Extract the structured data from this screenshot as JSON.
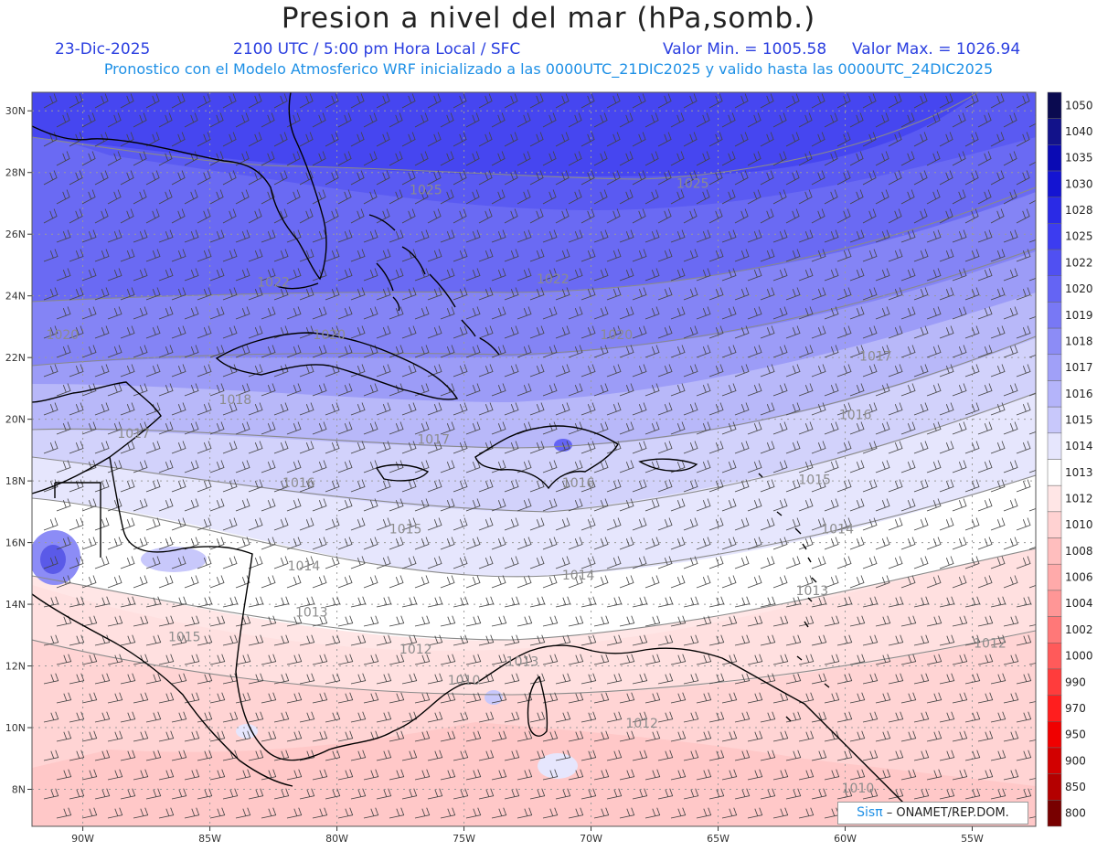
{
  "header": {
    "title": "Presion a nivel del mar (hPa,somb.)",
    "date": "23-Dic-2025",
    "time": "2100 UTC / 5:00 pm Hora Local / SFC",
    "min_label": "Valor Min. = 1005.58",
    "max_label": "Valor Max. = 1026.94",
    "subtitle": "Pronostico con el Modelo Atmosferico WRF inicializado a las 0000UTC_21DIC2025 y valido hasta las  0000UTC_24DIC2025"
  },
  "map": {
    "lat_labels": [
      "30N",
      "28N",
      "26N",
      "24N",
      "22N",
      "20N",
      "18N",
      "16N",
      "14N",
      "12N",
      "10N",
      "8N"
    ],
    "lon_labels": [
      "90W",
      "85W",
      "80W",
      "75W",
      "70W",
      "65W",
      "60W",
      "55W"
    ],
    "isobar_labels": [
      {
        "text": "1025",
        "lon": -76.5,
        "lat": 27.3
      },
      {
        "text": "1025",
        "lon": -66.0,
        "lat": 27.5
      },
      {
        "text": "1022",
        "lon": -82.5,
        "lat": 24.3
      },
      {
        "text": "1022",
        "lon": -71.5,
        "lat": 24.4
      },
      {
        "text": "1020",
        "lon": -90.8,
        "lat": 22.6
      },
      {
        "text": "1020",
        "lon": -80.3,
        "lat": 22.6
      },
      {
        "text": "1020",
        "lon": -69.0,
        "lat": 22.6
      },
      {
        "text": "1017",
        "lon": -58.8,
        "lat": 21.9
      },
      {
        "text": "1018",
        "lon": -84.0,
        "lat": 20.5
      },
      {
        "text": "1016",
        "lon": -59.6,
        "lat": 20.0
      },
      {
        "text": "1017",
        "lon": -88.0,
        "lat": 19.4
      },
      {
        "text": "1017",
        "lon": -76.2,
        "lat": 19.2
      },
      {
        "text": "1016",
        "lon": -81.5,
        "lat": 17.8
      },
      {
        "text": "1016",
        "lon": -70.5,
        "lat": 17.8
      },
      {
        "text": "1015",
        "lon": -61.2,
        "lat": 17.9
      },
      {
        "text": "1015",
        "lon": -77.3,
        "lat": 16.3
      },
      {
        "text": "1014",
        "lon": -60.3,
        "lat": 16.3
      },
      {
        "text": "1014",
        "lon": -81.3,
        "lat": 15.1
      },
      {
        "text": "1014",
        "lon": -70.5,
        "lat": 14.8
      },
      {
        "text": "1013",
        "lon": -81.0,
        "lat": 13.6
      },
      {
        "text": "1013",
        "lon": -61.3,
        "lat": 14.3
      },
      {
        "text": "1015",
        "lon": -86.0,
        "lat": 12.8
      },
      {
        "text": "1012",
        "lon": -76.9,
        "lat": 12.4
      },
      {
        "text": "1012",
        "lon": -54.3,
        "lat": 12.6
      },
      {
        "text": "1013",
        "lon": -72.7,
        "lat": 12.0
      },
      {
        "text": "1010",
        "lon": -75.0,
        "lat": 11.4
      },
      {
        "text": "1012",
        "lon": -68.0,
        "lat": 10.0
      },
      {
        "text": "1010",
        "lon": -59.5,
        "lat": 7.9
      }
    ]
  },
  "colorbar": {
    "levels": [
      "1050",
      "1040",
      "1035",
      "1030",
      "1028",
      "1025",
      "1022",
      "1020",
      "1019",
      "1018",
      "1017",
      "1016",
      "1015",
      "1014",
      "1013",
      "1012",
      "1010",
      "1008",
      "1006",
      "1004",
      "1002",
      "1000",
      "990",
      "970",
      "950",
      "900",
      "850",
      "800"
    ],
    "colors": [
      "#0a0a50",
      "#12128a",
      "#0a0ab4",
      "#1414d2",
      "#2a2ae6",
      "#3c3cf0",
      "#5050f2",
      "#6464f4",
      "#7878f5",
      "#8c8cf6",
      "#a0a0f8",
      "#b4b4fa",
      "#c8c8fb",
      "#e6e6fd",
      "#ffffff",
      "#ffe6e6",
      "#ffd2d2",
      "#ffbebe",
      "#ffaaaa",
      "#ff9696",
      "#ff7878",
      "#ff5a5a",
      "#ff3c3c",
      "#ff1e1e",
      "#f00000",
      "#d20000",
      "#b40000",
      "#780000"
    ]
  },
  "credit": {
    "brand": "Sisπ",
    "text": "– ONAMET/REP.DOM."
  }
}
